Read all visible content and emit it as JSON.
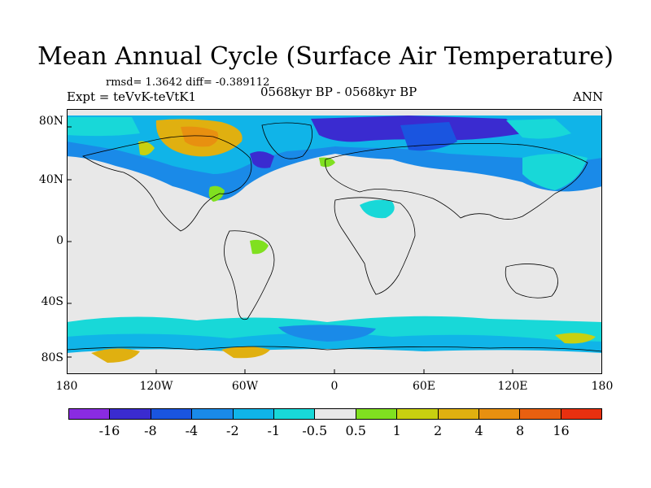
{
  "title": "Mean Annual Cycle (Surface Air Temperature)",
  "stats": "rmsd= 1.3642 diff= -0.389112",
  "expt": "Expt = teVvK-teVtK1",
  "period": "0568kyr BP - 0568kyr BP",
  "season": "ANN",
  "lat_labels": [
    "80N",
    "40N",
    "0",
    "40S",
    "80S"
  ],
  "lon_labels": [
    "180",
    "120W",
    "60W",
    "0",
    "60E",
    "120E",
    "180"
  ],
  "colorbar": {
    "labels": [
      "-16",
      "-8",
      "-4",
      "-2",
      "-1",
      "-0.5",
      "0.5",
      "1",
      "2",
      "4",
      "8",
      "16"
    ],
    "colors": [
      "#8a2be2",
      "#3a2bd0",
      "#1a55e0",
      "#1a8ae8",
      "#10b4e8",
      "#18d8d8",
      "#e8e8e8",
      "#80e020",
      "#c8d010",
      "#e0b010",
      "#e89010",
      "#e86010",
      "#e83010"
    ]
  }
}
